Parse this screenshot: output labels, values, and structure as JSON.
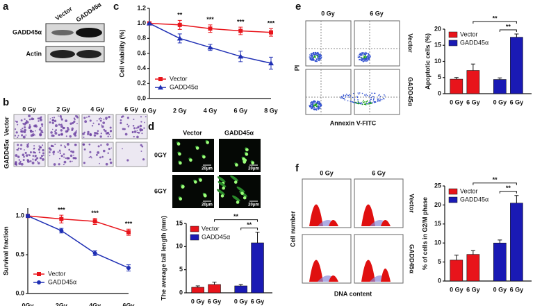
{
  "panel_labels": [
    "a",
    "b",
    "c",
    "d",
    "e",
    "f"
  ],
  "blot": {
    "columns": [
      "Vector",
      "GADD45α"
    ],
    "rows": [
      "GADD45α",
      "Actin"
    ]
  },
  "colony": {
    "columns": [
      "0 Gy",
      "2 Gy",
      "4 Gy",
      "6 Gy"
    ],
    "rows": [
      "Vector",
      "GADD45α"
    ]
  },
  "comet": {
    "columns": [
      "Vector",
      "GADD45α"
    ],
    "rows": [
      "0GY",
      "6GY"
    ],
    "scale_bar": "20μm"
  },
  "flow": {
    "columns": [
      "0 Gy",
      "6 Gy"
    ],
    "rows": [
      "Vector",
      "GADD45α"
    ],
    "y_label": "PI",
    "x_label": "Annexin V-FITC"
  },
  "cell_cycle": {
    "columns": [
      "0 Gy",
      "6 Gy"
    ],
    "rows": [
      "Vector",
      "GADD45α"
    ],
    "y_label": "Cell number",
    "x_label": "DNA content"
  },
  "chart_data": [
    {
      "type": "line",
      "y_label": "Cell viability (%)",
      "categories": [
        "0 Gy",
        "2 Gy",
        "4 Gy",
        "6 Gy",
        "8 Gy"
      ],
      "series": [
        {
          "name": "Vector",
          "color": "#e8141b",
          "marker": "square",
          "values": [
            1.0,
            0.98,
            0.93,
            0.9,
            0.88
          ],
          "errors": [
            0.02,
            0.06,
            0.05,
            0.05,
            0.05
          ]
        },
        {
          "name": "GADD45α",
          "color": "#1f2fb4",
          "marker": "triangle",
          "values": [
            1.0,
            0.8,
            0.68,
            0.56,
            0.47
          ],
          "errors": [
            0.0,
            0.06,
            0.04,
            0.07,
            0.08
          ]
        }
      ],
      "ylim": [
        0,
        1.2
      ],
      "yticks": [
        {
          "value": 0,
          "label": "0.0"
        },
        0.2,
        0.4,
        0.6,
        0.8,
        {
          "value": 1,
          "label": "1.0"
        },
        1.2
      ],
      "legend": "lower left",
      "annotations": [
        {
          "category": 1,
          "text": "**"
        },
        {
          "category": 2,
          "text": "***"
        },
        {
          "category": 3,
          "text": "***"
        },
        {
          "category": 4,
          "text": "***"
        }
      ]
    },
    {
      "type": "line",
      "y_label": "Survival fraction",
      "categories": [
        "0Gy",
        "2Gy",
        "4Gy",
        "6Gy"
      ],
      "series": [
        {
          "name": "Vector",
          "color": "#e8141b",
          "marker": "square",
          "values": [
            1.0,
            0.96,
            0.93,
            0.79
          ],
          "errors": [
            0.02,
            0.05,
            0.04,
            0.04
          ]
        },
        {
          "name": "GADD45α",
          "color": "#1f2fb4",
          "marker": "circle",
          "values": [
            1.0,
            0.81,
            0.52,
            0.33
          ],
          "errors": [
            0.02,
            0.03,
            0.03,
            0.04
          ]
        }
      ],
      "ylim": [
        0,
        1.1
      ],
      "yticks": [
        {
          "value": 0,
          "label": "0.0"
        },
        0.5,
        {
          "value": 1,
          "label": "1.0"
        }
      ],
      "legend": "lower left",
      "annotations": [
        {
          "category": 1,
          "text": "***"
        },
        {
          "category": 2,
          "text": "***"
        },
        {
          "category": 3,
          "text": "***"
        }
      ]
    },
    {
      "type": "bar",
      "y_label": "The average tail length (mm)",
      "categories": [
        "0 Gy",
        "6 Gy",
        "0 Gy",
        "6 Gy"
      ],
      "series": [
        {
          "name": "Vector",
          "color": "#e8141b",
          "values": [
            1.2,
            1.8,
            null,
            null
          ],
          "errors": [
            0.3,
            0.5,
            null,
            null
          ]
        },
        {
          "name": "GADD45α",
          "color": "#1a1ab4",
          "values": [
            null,
            null,
            1.5,
            10.8
          ],
          "errors": [
            null,
            null,
            0.3,
            2.3
          ]
        }
      ],
      "ylim": [
        0,
        15
      ],
      "yticks": [
        0,
        5,
        10,
        15
      ],
      "legend": "upper left",
      "annotations": [
        {
          "from": 1,
          "to": 3,
          "text": "**"
        },
        {
          "from": 2,
          "to": 3,
          "text": "**"
        }
      ]
    },
    {
      "type": "bar",
      "y_label": "Apoptotic cells (%)",
      "categories": [
        "0 Gy",
        "6 Gy",
        "0 Gy",
        "6 Gy"
      ],
      "series": [
        {
          "name": "Vector",
          "color": "#e8141b",
          "values": [
            4.5,
            7.2,
            null,
            null
          ],
          "errors": [
            0.5,
            2.0,
            null,
            null
          ]
        },
        {
          "name": "GADD45α",
          "color": "#1a1ab4",
          "values": [
            null,
            null,
            4.4,
            17.5
          ],
          "errors": [
            null,
            null,
            0.5,
            1.0
          ]
        }
      ],
      "ylim": [
        0,
        20
      ],
      "yticks": [
        0,
        5,
        10,
        15,
        20
      ],
      "legend": "upper left",
      "annotations": [
        {
          "from": 1,
          "to": 3,
          "text": "**"
        },
        {
          "from": 2,
          "to": 3,
          "text": "**"
        }
      ]
    },
    {
      "type": "bar",
      "y_label": "% of cells in G2/M phase",
      "categories": [
        "0 Gy",
        "6 Gy",
        "0 Gy",
        "6 Gy"
      ],
      "series": [
        {
          "name": "Vector",
          "color": "#e8141b",
          "values": [
            5.5,
            7.0,
            null,
            null
          ],
          "errors": [
            1.3,
            1.0,
            null,
            null
          ]
        },
        {
          "name": "GADD45α",
          "color": "#1a1ab4",
          "values": [
            null,
            null,
            10.0,
            20.5
          ],
          "errors": [
            null,
            null,
            0.8,
            2.0
          ]
        }
      ],
      "ylim": [
        0,
        25
      ],
      "yticks": [
        0,
        5,
        10,
        15,
        20,
        25
      ],
      "legend": "upper left",
      "annotations": [
        {
          "from": 1,
          "to": 3,
          "text": "**"
        },
        {
          "from": 2,
          "to": 3,
          "text": "**"
        }
      ]
    }
  ]
}
